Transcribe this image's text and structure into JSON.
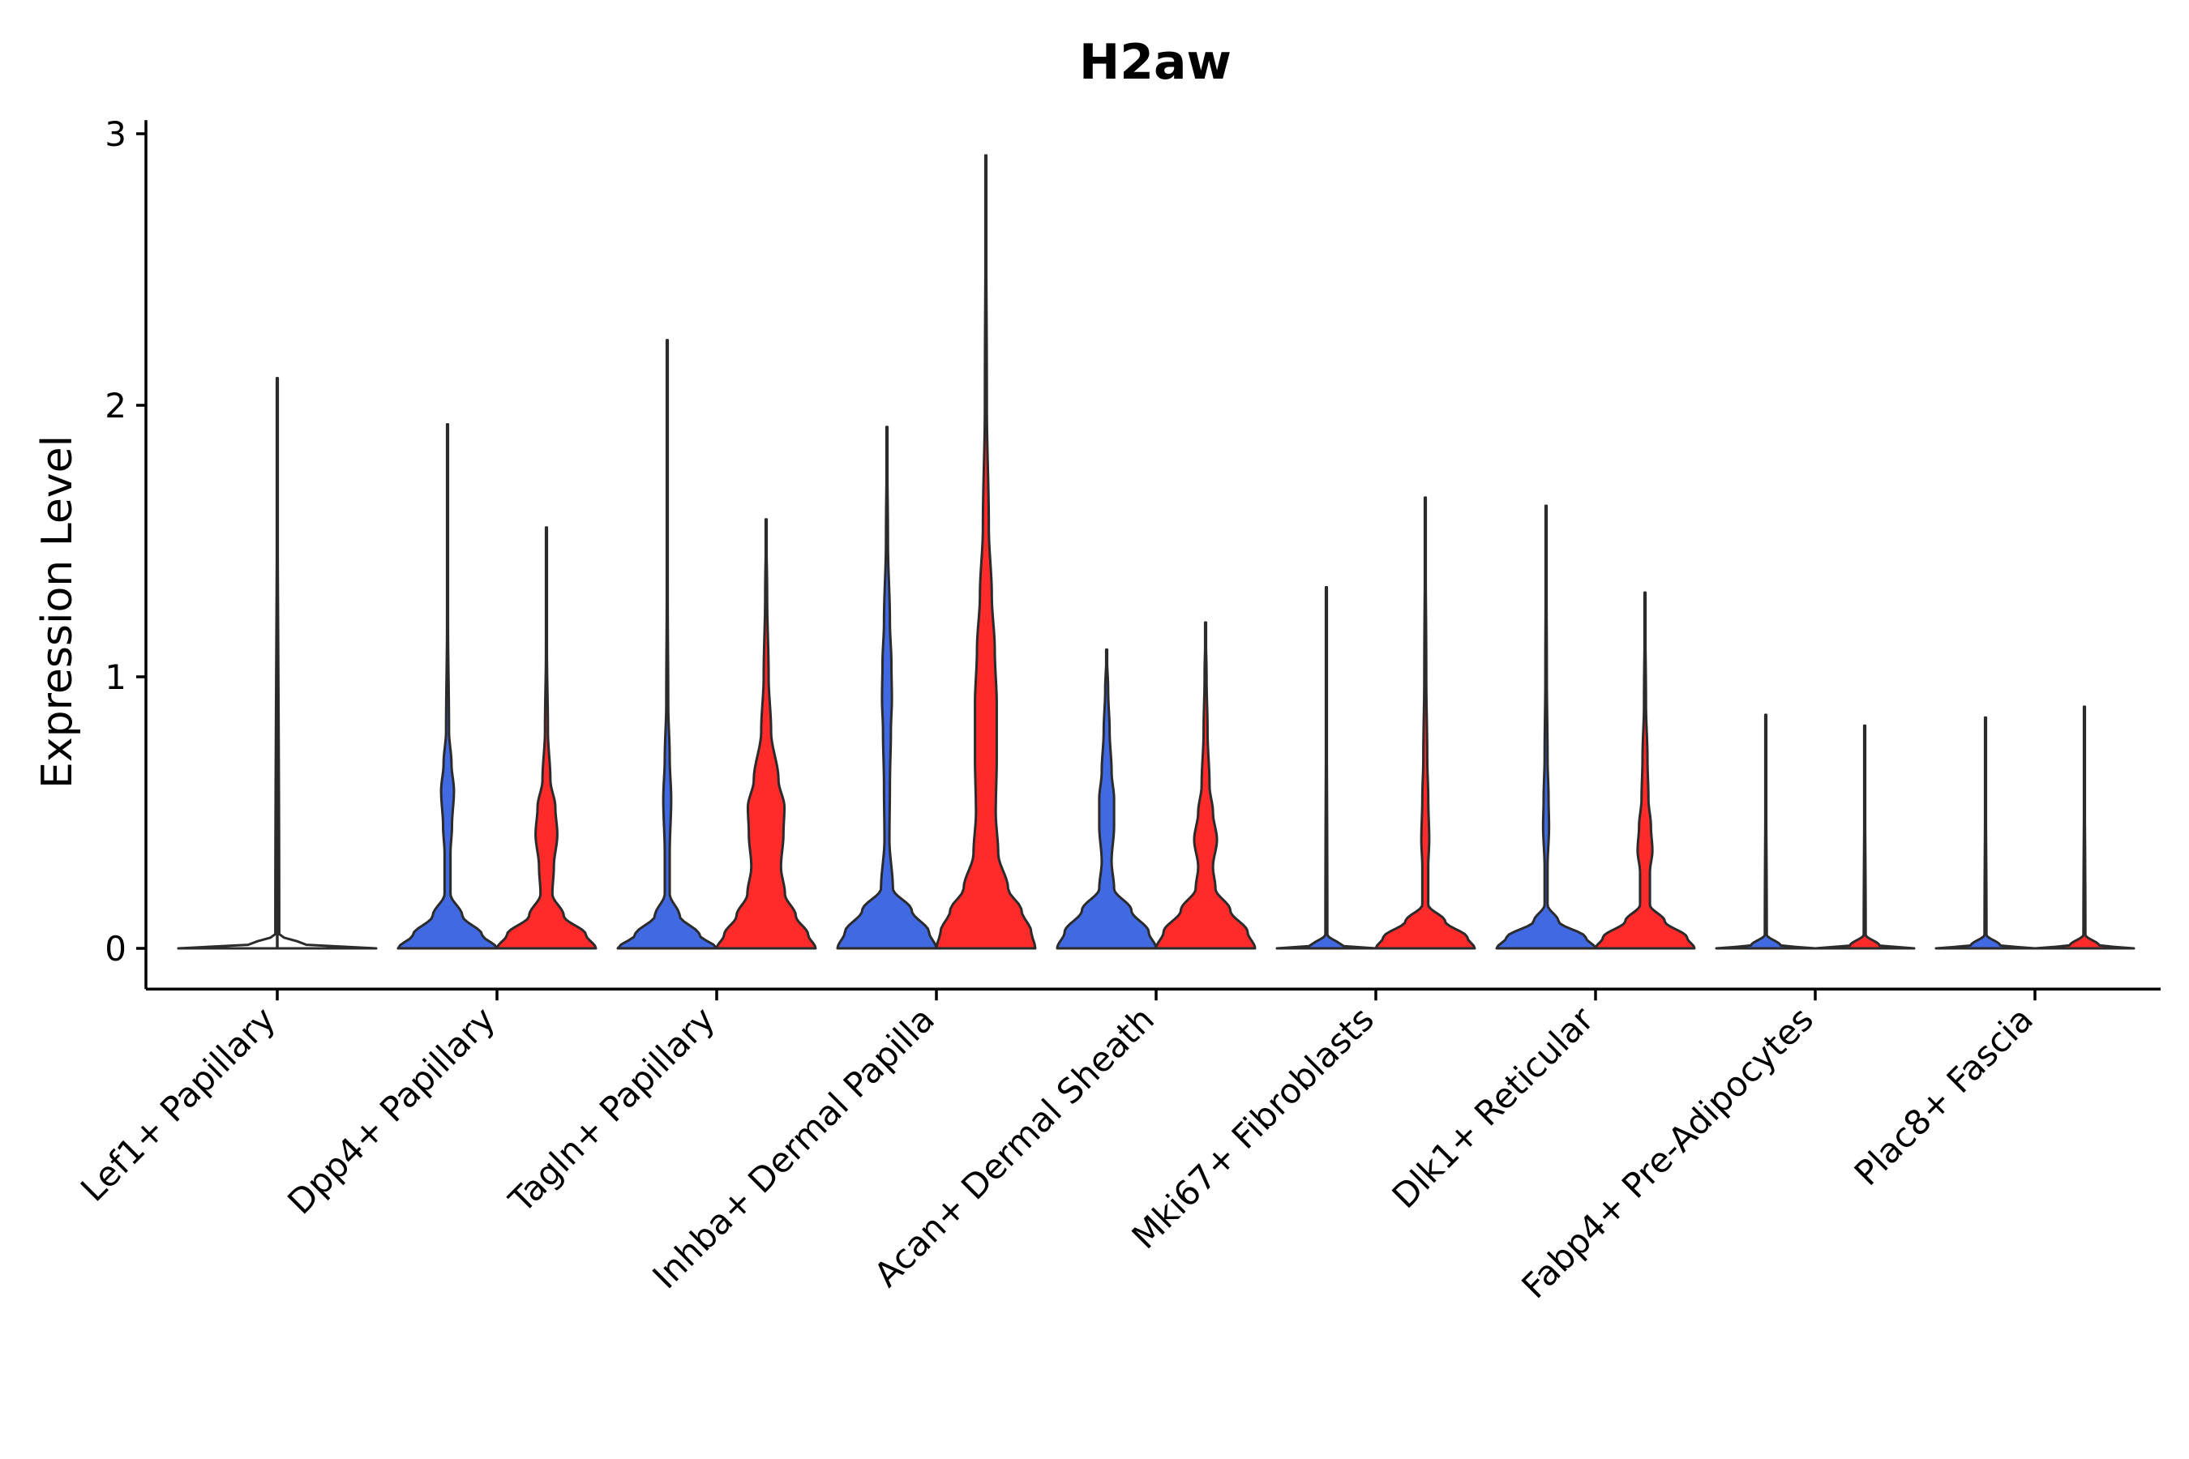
{
  "chart_data": {
    "type": "violin",
    "title": "H2aw",
    "xlabel": "",
    "ylabel": "Expression Level",
    "ylim": [
      -0.15,
      3.05
    ],
    "yticks": [
      "0",
      "1",
      "2",
      "3"
    ],
    "grid": false,
    "legend": "none",
    "colors": {
      "group1": "#4169E1",
      "group2": "#FF2A2A",
      "single": "#2b2b2b"
    },
    "categories": [
      "Lef1+ Papillary",
      "Dpp4+ Papillary",
      "Tagln+ Papillary",
      "Inhba+ Dermal Papilla",
      "Acan+ Dermal Sheath",
      "Mki67+ Fibroblasts",
      "Dlk1+ Reticular",
      "Fabp4+ Pre-Adipocytes",
      "Plac8+ Fascia"
    ],
    "violins": [
      {
        "category": "Lef1+ Papillary",
        "side": "single",
        "max": 2.1,
        "density": [
          [
            0,
            1.0
          ],
          [
            0.01,
            0.3
          ],
          [
            0.05,
            0.02
          ],
          [
            2.1,
            0.0
          ]
        ]
      },
      {
        "category": "Dpp4+ Papillary",
        "side": "left",
        "max": 1.93,
        "density": [
          [
            0,
            1.0
          ],
          [
            0.05,
            0.7
          ],
          [
            0.12,
            0.3
          ],
          [
            0.2,
            0.06
          ],
          [
            0.35,
            0.06
          ],
          [
            0.45,
            0.09
          ],
          [
            0.58,
            0.13
          ],
          [
            0.68,
            0.08
          ],
          [
            0.8,
            0.03
          ],
          [
            1.2,
            0.01
          ],
          [
            1.93,
            0.0
          ]
        ]
      },
      {
        "category": "Dpp4+ Papillary",
        "side": "right",
        "max": 1.55,
        "density": [
          [
            0,
            1.0
          ],
          [
            0.05,
            0.8
          ],
          [
            0.12,
            0.35
          ],
          [
            0.2,
            0.12
          ],
          [
            0.3,
            0.15
          ],
          [
            0.42,
            0.22
          ],
          [
            0.52,
            0.18
          ],
          [
            0.62,
            0.08
          ],
          [
            0.8,
            0.03
          ],
          [
            1.1,
            0.01
          ],
          [
            1.55,
            0.0
          ]
        ]
      },
      {
        "category": "Tagln+ Papillary",
        "side": "left",
        "max": 2.24,
        "density": [
          [
            0,
            1.0
          ],
          [
            0.05,
            0.65
          ],
          [
            0.12,
            0.25
          ],
          [
            0.2,
            0.05
          ],
          [
            0.35,
            0.05
          ],
          [
            0.55,
            0.08
          ],
          [
            0.7,
            0.05
          ],
          [
            0.9,
            0.02
          ],
          [
            1.3,
            0.01
          ],
          [
            2.24,
            0.0
          ]
        ]
      },
      {
        "category": "Tagln+ Papillary",
        "side": "right",
        "max": 1.58,
        "density": [
          [
            0,
            1.0
          ],
          [
            0.05,
            0.85
          ],
          [
            0.12,
            0.6
          ],
          [
            0.2,
            0.38
          ],
          [
            0.3,
            0.3
          ],
          [
            0.42,
            0.35
          ],
          [
            0.52,
            0.37
          ],
          [
            0.62,
            0.25
          ],
          [
            0.8,
            0.1
          ],
          [
            1.0,
            0.05
          ],
          [
            1.3,
            0.02
          ],
          [
            1.58,
            0.0
          ]
        ]
      },
      {
        "category": "Inhba+ Dermal Papilla",
        "side": "left",
        "max": 1.92,
        "density": [
          [
            0,
            1.0
          ],
          [
            0.06,
            0.85
          ],
          [
            0.14,
            0.5
          ],
          [
            0.22,
            0.12
          ],
          [
            0.4,
            0.05
          ],
          [
            0.6,
            0.06
          ],
          [
            0.8,
            0.08
          ],
          [
            0.92,
            0.1
          ],
          [
            1.05,
            0.09
          ],
          [
            1.2,
            0.06
          ],
          [
            1.5,
            0.02
          ],
          [
            1.92,
            0.0
          ]
        ]
      },
      {
        "category": "Inhba+ Dermal Papilla",
        "side": "right",
        "max": 2.92,
        "density": [
          [
            0,
            1.0
          ],
          [
            0.06,
            0.92
          ],
          [
            0.14,
            0.72
          ],
          [
            0.22,
            0.45
          ],
          [
            0.35,
            0.25
          ],
          [
            0.5,
            0.2
          ],
          [
            0.7,
            0.22
          ],
          [
            0.9,
            0.22
          ],
          [
            1.1,
            0.18
          ],
          [
            1.3,
            0.12
          ],
          [
            1.55,
            0.06
          ],
          [
            2.0,
            0.02
          ],
          [
            2.92,
            0.0
          ]
        ]
      },
      {
        "category": "Acan+ Dermal Sheath",
        "side": "left",
        "max": 1.1,
        "density": [
          [
            0,
            1.0
          ],
          [
            0.06,
            0.85
          ],
          [
            0.14,
            0.5
          ],
          [
            0.22,
            0.15
          ],
          [
            0.32,
            0.1
          ],
          [
            0.45,
            0.15
          ],
          [
            0.55,
            0.15
          ],
          [
            0.65,
            0.1
          ],
          [
            0.8,
            0.06
          ],
          [
            0.95,
            0.03
          ],
          [
            1.1,
            0.0
          ]
        ]
      },
      {
        "category": "Acan+ Dermal Sheath",
        "side": "right",
        "max": 1.2,
        "density": [
          [
            0,
            1.0
          ],
          [
            0.06,
            0.85
          ],
          [
            0.14,
            0.5
          ],
          [
            0.22,
            0.2
          ],
          [
            0.3,
            0.15
          ],
          [
            0.4,
            0.23
          ],
          [
            0.5,
            0.15
          ],
          [
            0.6,
            0.08
          ],
          [
            0.8,
            0.04
          ],
          [
            1.0,
            0.02
          ],
          [
            1.2,
            0.0
          ]
        ]
      },
      {
        "category": "Mki67+ Fibroblasts",
        "side": "left",
        "max": 1.33,
        "density": [
          [
            0,
            1.0
          ],
          [
            0.01,
            0.3
          ],
          [
            0.05,
            0.02
          ],
          [
            1.33,
            0.0
          ]
        ]
      },
      {
        "category": "Mki67+ Fibroblasts",
        "side": "right",
        "max": 1.66,
        "density": [
          [
            0,
            1.0
          ],
          [
            0.04,
            0.85
          ],
          [
            0.1,
            0.4
          ],
          [
            0.16,
            0.06
          ],
          [
            0.3,
            0.06
          ],
          [
            0.4,
            0.08
          ],
          [
            0.55,
            0.06
          ],
          [
            0.7,
            0.04
          ],
          [
            1.0,
            0.02
          ],
          [
            1.66,
            0.0
          ]
        ]
      },
      {
        "category": "Dlk1+ Reticular",
        "side": "left",
        "max": 1.63,
        "density": [
          [
            0,
            1.0
          ],
          [
            0.04,
            0.8
          ],
          [
            0.1,
            0.25
          ],
          [
            0.16,
            0.03
          ],
          [
            0.3,
            0.03
          ],
          [
            0.45,
            0.06
          ],
          [
            0.55,
            0.05
          ],
          [
            0.7,
            0.03
          ],
          [
            1.0,
            0.015
          ],
          [
            1.63,
            0.0
          ]
        ]
      },
      {
        "category": "Dlk1+ Reticular",
        "side": "right",
        "max": 1.31,
        "density": [
          [
            0,
            1.0
          ],
          [
            0.04,
            0.85
          ],
          [
            0.1,
            0.4
          ],
          [
            0.16,
            0.1
          ],
          [
            0.28,
            0.1
          ],
          [
            0.36,
            0.15
          ],
          [
            0.45,
            0.12
          ],
          [
            0.55,
            0.07
          ],
          [
            0.7,
            0.05
          ],
          [
            0.9,
            0.02
          ],
          [
            1.31,
            0.0
          ]
        ]
      },
      {
        "category": "Fabp4+ Pre-Adipocytes",
        "side": "left",
        "max": 0.86,
        "density": [
          [
            0,
            1.0
          ],
          [
            0.01,
            0.3
          ],
          [
            0.05,
            0.02
          ],
          [
            0.86,
            0.0
          ]
        ]
      },
      {
        "category": "Fabp4+ Pre-Adipocytes",
        "side": "right",
        "max": 0.82,
        "density": [
          [
            0,
            1.0
          ],
          [
            0.01,
            0.3
          ],
          [
            0.05,
            0.02
          ],
          [
            0.82,
            0.0
          ]
        ]
      },
      {
        "category": "Plac8+ Fascia",
        "side": "left",
        "max": 0.85,
        "density": [
          [
            0,
            1.0
          ],
          [
            0.01,
            0.3
          ],
          [
            0.05,
            0.02
          ],
          [
            0.85,
            0.0
          ]
        ]
      },
      {
        "category": "Plac8+ Fascia",
        "side": "right",
        "max": 0.89,
        "density": [
          [
            0,
            1.0
          ],
          [
            0.01,
            0.3
          ],
          [
            0.05,
            0.02
          ],
          [
            0.89,
            0.0
          ]
        ]
      }
    ]
  }
}
